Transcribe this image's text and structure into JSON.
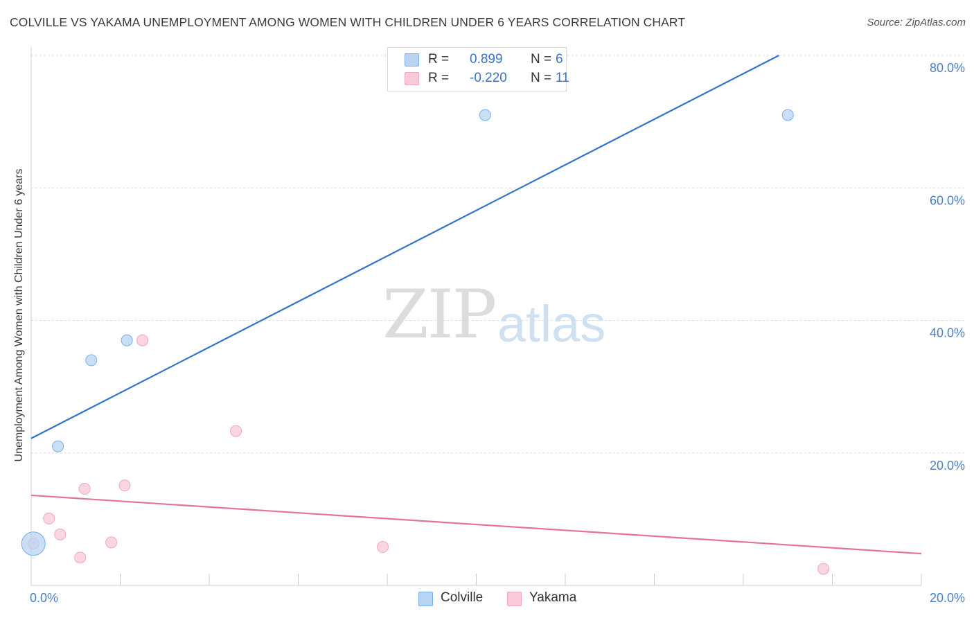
{
  "title": "COLVILLE VS YAKAMA UNEMPLOYMENT AMONG WOMEN WITH CHILDREN UNDER 6 YEARS CORRELATION CHART",
  "source": "Source: ZipAtlas.com",
  "watermark": {
    "zip": "ZIP",
    "atlas": "atlas"
  },
  "legend": {
    "colville": {
      "r_label": "R =",
      "r_value": "0.899",
      "n_label": "N =",
      "n_value": "6"
    },
    "yakama": {
      "r_label": "R =",
      "r_value": "-0.220",
      "n_label": "N =",
      "n_value": "11"
    }
  },
  "colors": {
    "colville": "#7aaee8",
    "colville_fill": "#b8d3f3",
    "colville_line": "#3074cc",
    "yakama": "#f0a6bc",
    "yakama_fill": "#f8c9d6",
    "yakama_line": "#e57397",
    "tick_label": "#4a7fc8",
    "grid": "#dcdcdc"
  },
  "chart_data": {
    "type": "scatter",
    "title": "COLVILLE VS YAKAMA UNEMPLOYMENT AMONG WOMEN WITH CHILDREN UNDER 6 YEARS CORRELATION CHART",
    "xlabel": "",
    "ylabel": "Unemployment Among Women with Children Under 6 years",
    "xlim": [
      0,
      20
    ],
    "ylim": [
      0,
      80
    ],
    "x_ticks": [
      "0.0%",
      "20.0%"
    ],
    "y_ticks": [
      "80.0%",
      "60.0%",
      "40.0%",
      "20.0%"
    ],
    "y_tick_values": [
      80,
      60,
      40,
      20
    ],
    "grid": true,
    "legend_position": "top-center",
    "series": [
      {
        "name": "Colville",
        "points": [
          [
            0.05,
            6.3,
            "large"
          ],
          [
            0.6,
            21.0
          ],
          [
            1.35,
            34.0
          ],
          [
            2.15,
            37.0
          ],
          [
            10.2,
            71.0
          ],
          [
            17.0,
            71.0
          ]
        ],
        "trend": [
          [
            0,
            22.2
          ],
          [
            16.8,
            80
          ]
        ]
      },
      {
        "name": "Yakama",
        "points": [
          [
            0.05,
            6.3
          ],
          [
            0.4,
            10.1
          ],
          [
            0.65,
            7.7
          ],
          [
            1.1,
            4.2
          ],
          [
            1.2,
            14.6
          ],
          [
            1.8,
            6.5
          ],
          [
            2.1,
            15.1
          ],
          [
            2.5,
            37.0
          ],
          [
            4.6,
            23.3
          ],
          [
            7.9,
            5.8
          ],
          [
            17.8,
            2.5
          ]
        ],
        "trend": [
          [
            0,
            13.6
          ],
          [
            20,
            4.8
          ]
        ]
      }
    ]
  },
  "bottom_legend": {
    "colville": "Colville",
    "yakama": "Yakama"
  }
}
